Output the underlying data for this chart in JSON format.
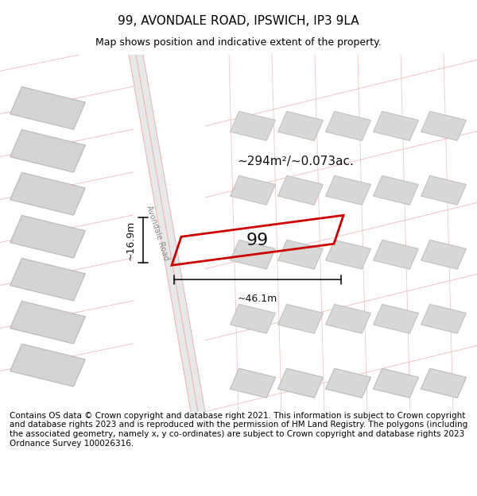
{
  "title": "99, AVONDALE ROAD, IPSWICH, IP3 9LA",
  "subtitle": "Map shows position and indicative extent of the property.",
  "copyright": "Contains OS data © Crown copyright and database right 2021. This information is subject to Crown copyright and database rights 2023 and is reproduced with the permission of HM Land Registry. The polygons (including the associated geometry, namely x, y co-ordinates) are subject to Crown copyright and database rights 2023 Ordnance Survey 100026316.",
  "area_label": "~294m²/~0.073ac.",
  "plot_number": "99",
  "dim_width": "~46.1m",
  "dim_height": "~16.9m",
  "road_label": "Avondale Road",
  "bg_color": "#f5f5f5",
  "map_bg": "#f0f0f0",
  "building_color": "#d8d8d8",
  "building_edge": "#cccccc",
  "road_color": "#ffffff",
  "road_line_color": "#e8a0a0",
  "property_color": "none",
  "property_edge": "#cc0000",
  "dim_line_color": "#222222",
  "title_fontsize": 11,
  "subtitle_fontsize": 9,
  "copyright_fontsize": 7.5
}
